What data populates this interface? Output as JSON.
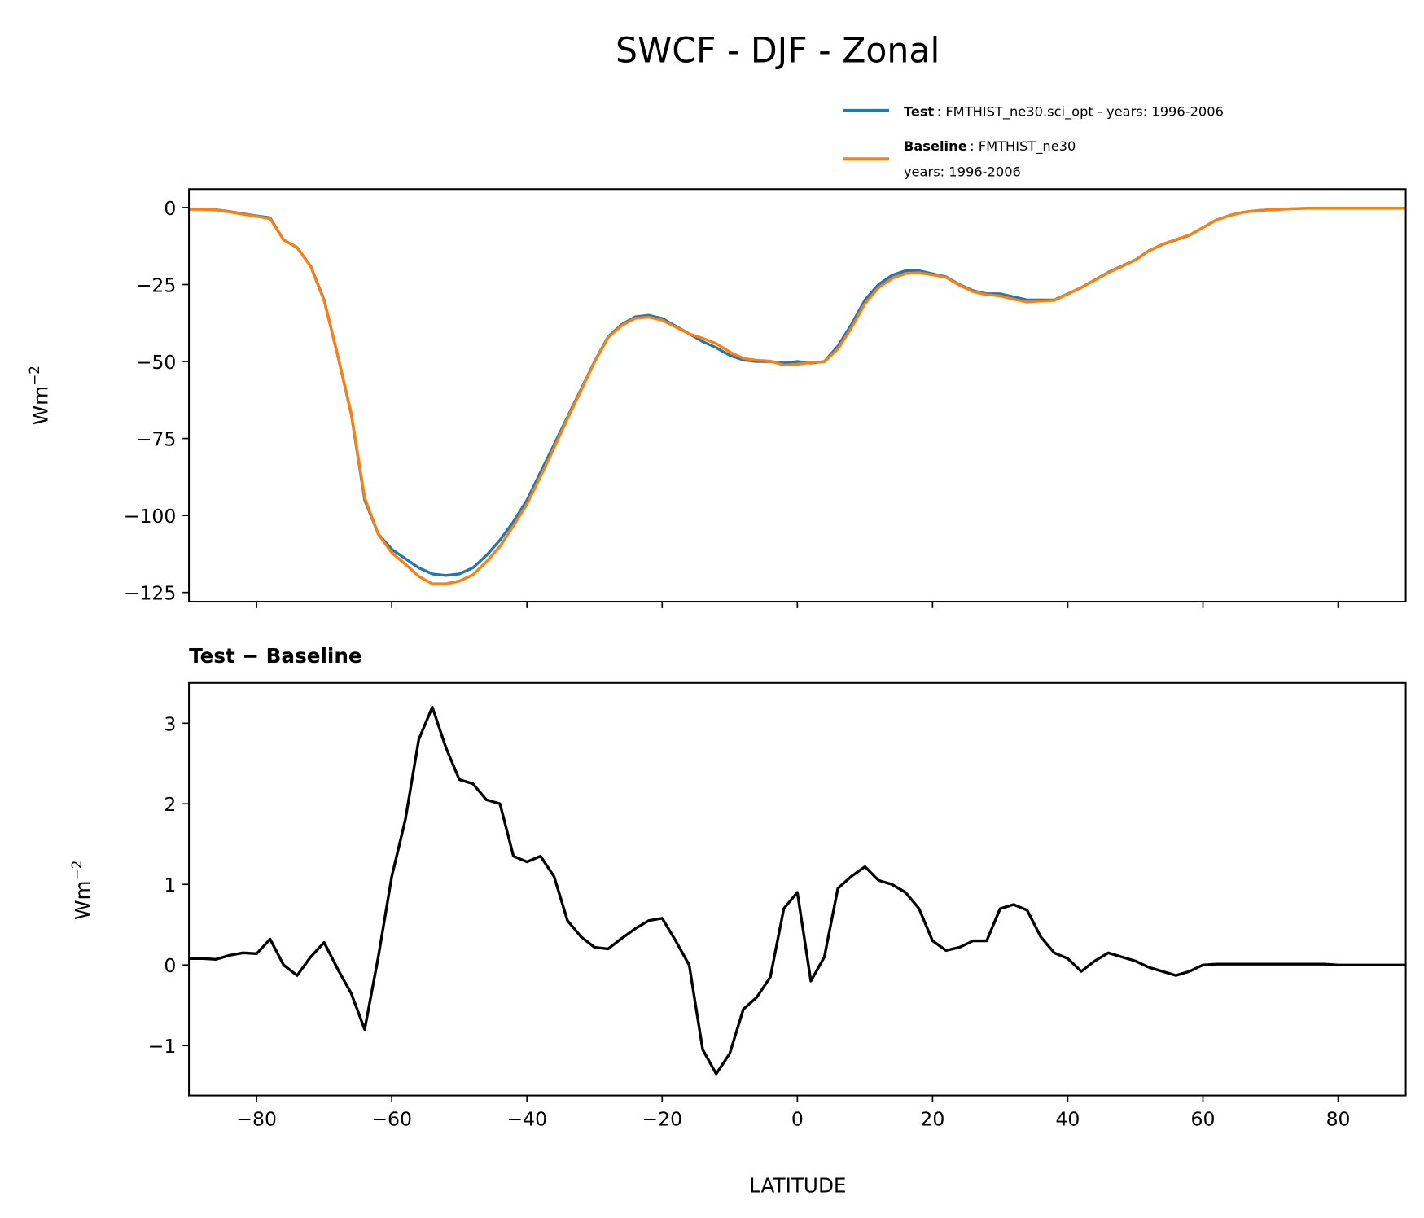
{
  "chart_data": [
    {
      "type": "line",
      "title": "SWCF - DJF - Zonal",
      "ylabel": "Wm",
      "ylabel_superscript": "−2",
      "xlim": [
        -90,
        90
      ],
      "ylim": [
        -128,
        6
      ],
      "yticks": [
        0,
        -25,
        -50,
        -75,
        -100,
        -125
      ],
      "ytick_labels": [
        "0",
        "−25",
        "−50",
        "−75",
        "−100",
        "−125"
      ],
      "xticks": [
        -80,
        -60,
        -40,
        -20,
        0,
        20,
        40,
        60,
        80
      ],
      "legend_placement": "above-right",
      "legend": [
        {
          "bold": "Test",
          "text": ": FMTHIST_ne30.sci_opt - years: 1996-2006",
          "color": "#1f77b4"
        },
        {
          "bold": "Baseline",
          "text": ": FMTHIST_ne30",
          "text2": "years: 1996-2006",
          "color": "#ff7f0e"
        }
      ],
      "x": [
        -90,
        -88,
        -86,
        -84,
        -82,
        -80,
        -78,
        -76,
        -74,
        -72,
        -70,
        -68,
        -66,
        -64,
        -62,
        -60,
        -58,
        -56,
        -54,
        -52,
        -50,
        -48,
        -46,
        -44,
        -42,
        -40,
        -38,
        -36,
        -34,
        -32,
        -30,
        -28,
        -26,
        -24,
        -22,
        -20,
        -18,
        -16,
        -14,
        -12,
        -10,
        -8,
        -6,
        -4,
        -2,
        0,
        2,
        4,
        6,
        8,
        10,
        12,
        14,
        16,
        18,
        20,
        22,
        24,
        26,
        28,
        30,
        32,
        34,
        36,
        38,
        40,
        42,
        44,
        46,
        48,
        50,
        52,
        54,
        56,
        58,
        60,
        62,
        64,
        66,
        68,
        70,
        72,
        74,
        76,
        78,
        80,
        82,
        84,
        86,
        88,
        90
      ],
      "series": [
        {
          "name": "Test",
          "color": "#1f77b4",
          "values": [
            -0.5,
            -0.5,
            -0.7,
            -1.3,
            -2,
            -2.7,
            -3.3,
            -10.5,
            -13,
            -19,
            -30,
            -48,
            -67,
            -95,
            -106,
            -111,
            -114,
            -117,
            -119,
            -119.5,
            -119,
            -117,
            -113,
            -108,
            -102,
            -95,
            -86,
            -77,
            -68,
            -59,
            -50,
            -42,
            -38,
            -35.5,
            -35,
            -36,
            -38.5,
            -41,
            -43.5,
            -45.5,
            -48,
            -49.5,
            -50,
            -50,
            -50.5,
            -50,
            -50.5,
            -50,
            -45,
            -38,
            -30,
            -25,
            -22,
            -20.5,
            -20.5,
            -21.5,
            -22.5,
            -25,
            -27,
            -28,
            -28,
            -29,
            -30,
            -30,
            -30,
            -28,
            -26,
            -23.5,
            -21,
            -19,
            -17,
            -14,
            -12,
            -10.5,
            -9,
            -6.5,
            -4,
            -2.5,
            -1.5,
            -1,
            -0.7,
            -0.5,
            -0.3,
            -0.2,
            -0.2,
            -0.2,
            -0.2,
            -0.2,
            -0.2,
            -0.2,
            -0.2
          ]
        },
        {
          "name": "Baseline",
          "color": "#ff7f0e",
          "values": [
            -0.58,
            -0.58,
            -0.77,
            -1.42,
            -2.15,
            -2.84,
            -3.62,
            -10.5,
            -12.87,
            -19.1,
            -30.28,
            -47.95,
            -66.65,
            -94.2,
            -106.1,
            -112.1,
            -115.8,
            -119.8,
            -122.2,
            -122.2,
            -121.3,
            -119.25,
            -115.05,
            -110,
            -103.35,
            -96.28,
            -87.35,
            -78.1,
            -68.55,
            -59.35,
            -50.22,
            -42.2,
            -38.33,
            -35.95,
            -35.55,
            -36.58,
            -38.8,
            -41,
            -42.45,
            -44.15,
            -46.9,
            -48.95,
            -49.6,
            -49.85,
            -51.2,
            -50.9,
            -50.3,
            -50.1,
            -45.95,
            -39.1,
            -31.22,
            -26.05,
            -23,
            -21.4,
            -21.2,
            -21.8,
            -22.68,
            -25.22,
            -27.3,
            -28.3,
            -28.7,
            -29.75,
            -30.68,
            -30.35,
            -30.15,
            -28.08,
            -25.92,
            -23.55,
            -21.15,
            -19.1,
            -17.05,
            -13.97,
            -11.92,
            -10.37,
            -8.92,
            -6.5,
            -4.01,
            -2.51,
            -1.51,
            -1.01,
            -0.71,
            -0.51,
            -0.31,
            -0.21,
            -0.21,
            -0.21,
            -0.21,
            -0.21,
            -0.21,
            -0.21,
            -0.21
          ]
        }
      ]
    },
    {
      "type": "line",
      "title": "Test − Baseline",
      "xlabel": "LATITUDE",
      "ylabel": "Wm",
      "ylabel_superscript": "−2",
      "xlim": [
        -90,
        90
      ],
      "ylim": [
        -1.62,
        3.5
      ],
      "yticks": [
        3,
        2,
        1,
        0,
        -1
      ],
      "ytick_labels": [
        "3",
        "2",
        "1",
        "0",
        "−1"
      ],
      "xticks": [
        -80,
        -60,
        -40,
        -20,
        0,
        20,
        40,
        60,
        80
      ],
      "xtick_labels": [
        "−80",
        "−60",
        "−40",
        "−20",
        "0",
        "20",
        "40",
        "60",
        "80"
      ],
      "x": [
        -90,
        -88,
        -86,
        -84,
        -82,
        -80,
        -78,
        -76,
        -74,
        -72,
        -70,
        -68,
        -66,
        -64,
        -62,
        -60,
        -58,
        -56,
        -54,
        -52,
        -50,
        -48,
        -46,
        -44,
        -42,
        -40,
        -38,
        -36,
        -34,
        -32,
        -30,
        -28,
        -26,
        -24,
        -22,
        -20,
        -18,
        -16,
        -14,
        -12,
        -10,
        -8,
        -6,
        -4,
        -2,
        0,
        2,
        4,
        6,
        8,
        10,
        12,
        14,
        16,
        18,
        20,
        22,
        24,
        26,
        28,
        30,
        32,
        34,
        36,
        38,
        40,
        42,
        44,
        46,
        48,
        50,
        52,
        54,
        56,
        58,
        60,
        62,
        64,
        66,
        68,
        70,
        72,
        74,
        76,
        78,
        80,
        82,
        84,
        86,
        88,
        90
      ],
      "series": [
        {
          "name": "Test − Baseline",
          "color": "#000000",
          "values": [
            0.08,
            0.08,
            0.07,
            0.12,
            0.15,
            0.14,
            0.32,
            0.0,
            -0.13,
            0.1,
            0.28,
            -0.05,
            -0.35,
            -0.8,
            0.1,
            1.1,
            1.8,
            2.8,
            3.2,
            2.7,
            2.3,
            2.25,
            2.05,
            2.0,
            1.35,
            1.28,
            1.35,
            1.1,
            0.55,
            0.35,
            0.22,
            0.2,
            0.33,
            0.45,
            0.55,
            0.58,
            0.3,
            0.0,
            -1.05,
            -1.35,
            -1.1,
            -0.55,
            -0.4,
            -0.15,
            0.7,
            0.9,
            -0.2,
            0.1,
            0.95,
            1.1,
            1.22,
            1.05,
            1.0,
            0.9,
            0.7,
            0.3,
            0.18,
            0.22,
            0.3,
            0.3,
            0.7,
            0.75,
            0.68,
            0.35,
            0.15,
            0.08,
            -0.08,
            0.05,
            0.15,
            0.1,
            0.05,
            -0.03,
            -0.08,
            -0.13,
            -0.08,
            0.0,
            0.01,
            0.01,
            0.01,
            0.01,
            0.01,
            0.01,
            0.01,
            0.01,
            0.01,
            0.0,
            0.0,
            0.0,
            0.0,
            0.0,
            0.0
          ]
        }
      ]
    }
  ]
}
